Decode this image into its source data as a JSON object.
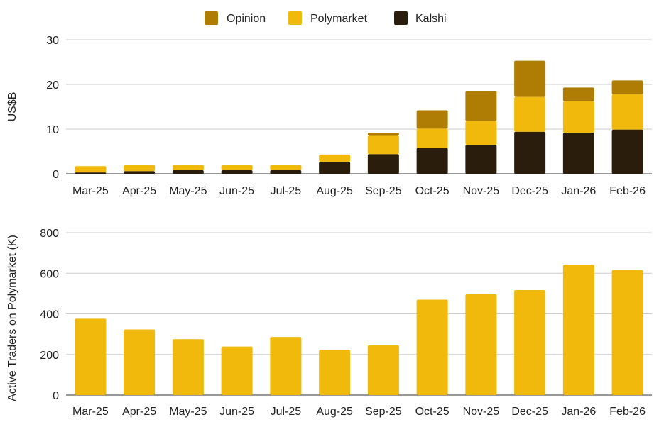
{
  "chart_data": [
    {
      "type": "bar",
      "stacked": true,
      "title": "",
      "xlabel": "",
      "ylabel": "US$B",
      "ylim": [
        0,
        30
      ],
      "yticks": [
        0,
        10,
        20,
        30
      ],
      "grid": true,
      "legend_position": "top",
      "categories": [
        "Mar-25",
        "Apr-25",
        "May-25",
        "Jun-25",
        "Jul-25",
        "Aug-25",
        "Sep-25",
        "Oct-25",
        "Nov-25",
        "Dec-25",
        "Jan-26",
        "Feb-26"
      ],
      "series": [
        {
          "name": "Kalshi",
          "color": "#2b1d0b",
          "values": [
            0.3,
            0.6,
            0.8,
            0.8,
            0.8,
            2.7,
            4.4,
            5.8,
            6.5,
            9.4,
            9.2,
            9.9
          ]
        },
        {
          "name": "Polymarket",
          "color": "#f0b90b",
          "values": [
            1.4,
            1.4,
            1.2,
            1.2,
            1.2,
            1.6,
            4.1,
            4.3,
            5.3,
            7.8,
            7.0,
            7.9
          ]
        },
        {
          "name": "Opinion",
          "color": "#b07d04",
          "values": [
            0,
            0,
            0,
            0,
            0,
            0,
            0.7,
            4.1,
            6.7,
            8.1,
            3.1,
            3.1
          ]
        }
      ],
      "legend_order": [
        "Opinion",
        "Polymarket",
        "Kalshi"
      ]
    },
    {
      "type": "bar",
      "title": "",
      "xlabel": "",
      "ylabel": "Active Traders on Polymarket (K)",
      "ylim": [
        0,
        800
      ],
      "yticks": [
        0,
        200,
        400,
        600,
        800
      ],
      "grid": true,
      "categories": [
        "Mar-25",
        "Apr-25",
        "May-25",
        "Jun-25",
        "Jul-25",
        "Aug-25",
        "Sep-25",
        "Oct-25",
        "Nov-25",
        "Dec-25",
        "Jan-26",
        "Feb-26"
      ],
      "series": [
        {
          "color": "#f0b90b",
          "values": [
            376,
            323,
            275,
            239,
            286,
            223,
            245,
            470,
            496,
            517,
            642,
            616
          ]
        }
      ]
    }
  ]
}
